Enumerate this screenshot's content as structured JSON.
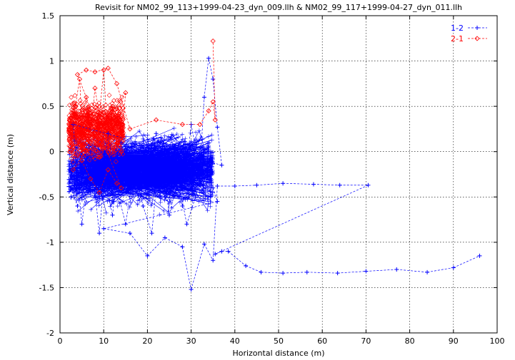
{
  "chart_data": {
    "type": "scatter",
    "title": "Revisit for NM02_99_113+1999-04-23_dyn_009.llh & NM02_99_117+1999-04-27_dyn_011.llh",
    "xlabel": "Horizontal distance (m)",
    "ylabel": "Vertical distance (m)",
    "xlim": [
      0,
      100
    ],
    "ylim": [
      -2,
      1.5
    ],
    "x_ticks": [
      "0",
      "10",
      "20",
      "30",
      "40",
      "50",
      "60",
      "70",
      "80",
      "90",
      "100"
    ],
    "y_ticks": [
      "1.5",
      "1",
      "0.5",
      "0",
      "-0.5",
      "-1",
      "-1.5",
      "-2"
    ],
    "grid": true,
    "legend_position": "top-right",
    "series": [
      {
        "name": "1-2",
        "color": "#0000ff",
        "marker": "plus",
        "line": "dashed",
        "points": [
          [
            2.5,
            -0.4
          ],
          [
            4.0,
            -0.6
          ],
          [
            6.0,
            -0.3
          ],
          [
            8.0,
            -0.5
          ],
          [
            10.0,
            -0.2
          ],
          [
            12.0,
            -0.7
          ],
          [
            14.0,
            0.1
          ],
          [
            16.0,
            -0.4
          ],
          [
            18.0,
            0.0
          ],
          [
            20.0,
            -0.3
          ],
          [
            22.0,
            0.2
          ],
          [
            24.0,
            -0.5
          ],
          [
            26.0,
            -0.1
          ],
          [
            28.0,
            -0.6
          ],
          [
            30.0,
            0.3
          ],
          [
            32.0,
            -0.2
          ],
          [
            33.0,
            0.6
          ],
          [
            34.0,
            1.03
          ],
          [
            35.0,
            0.8
          ],
          [
            36.0,
            0.27
          ],
          [
            37.0,
            -0.15
          ],
          [
            3.0,
            0.3
          ],
          [
            5.0,
            -0.8
          ],
          [
            7.0,
            0.0
          ],
          [
            9.0,
            -0.9
          ],
          [
            11.0,
            0.2
          ],
          [
            13.0,
            -0.4
          ],
          [
            15.0,
            -0.8
          ],
          [
            17.0,
            -0.2
          ],
          [
            19.0,
            -0.6
          ],
          [
            21.0,
            -0.9
          ],
          [
            23.0,
            0.1
          ],
          [
            25.0,
            -0.7
          ],
          [
            27.0,
            -0.3
          ],
          [
            29.0,
            -0.8
          ],
          [
            31.0,
            -0.5
          ],
          [
            33.0,
            -0.1
          ],
          [
            35.0,
            -0.4
          ],
          [
            36.0,
            -0.55
          ],
          [
            10.0,
            -0.85
          ],
          [
            16.0,
            -0.9
          ],
          [
            20.0,
            -1.15
          ],
          [
            24.0,
            -0.95
          ],
          [
            28.0,
            -1.05
          ],
          [
            30.0,
            -1.52
          ],
          [
            33.0,
            -1.02
          ],
          [
            35.0,
            -1.2
          ],
          [
            36.0,
            -0.38
          ],
          [
            40.0,
            -0.38
          ],
          [
            45.0,
            -0.37
          ],
          [
            51.0,
            -0.35
          ],
          [
            58.0,
            -0.36
          ],
          [
            64.0,
            -0.37
          ],
          [
            70.5,
            -0.37
          ],
          [
            35.5,
            -1.13
          ],
          [
            37.0,
            -1.1
          ],
          [
            38.5,
            -1.1
          ],
          [
            42.5,
            -1.26
          ],
          [
            46.0,
            -1.33
          ],
          [
            51.0,
            -1.34
          ],
          [
            56.5,
            -1.33
          ],
          [
            63.5,
            -1.34
          ],
          [
            70.0,
            -1.32
          ],
          [
            77.0,
            -1.3
          ],
          [
            84.0,
            -1.33
          ],
          [
            90.0,
            -1.28
          ],
          [
            96.0,
            -1.15
          ]
        ]
      },
      {
        "name": "2-1",
        "color": "#ff0000",
        "marker": "diamond",
        "line": "dashed",
        "points": [
          [
            2.5,
            0.1
          ],
          [
            3.5,
            0.5
          ],
          [
            4.5,
            0.8
          ],
          [
            5.0,
            0.3
          ],
          [
            6.0,
            0.6
          ],
          [
            7.0,
            0.2
          ],
          [
            8.0,
            0.7
          ],
          [
            9.0,
            0.4
          ],
          [
            10.0,
            0.9
          ],
          [
            11.0,
            0.1
          ],
          [
            12.0,
            0.5
          ],
          [
            13.0,
            0.3
          ],
          [
            14.0,
            0.0
          ],
          [
            15.0,
            0.65
          ],
          [
            3.0,
            -0.2
          ],
          [
            5.0,
            -0.1
          ],
          [
            7.0,
            -0.3
          ],
          [
            9.0,
            -0.45
          ],
          [
            11.0,
            -0.2
          ],
          [
            13.0,
            -0.35
          ],
          [
            14.0,
            -0.4
          ],
          [
            4.0,
            0.85
          ],
          [
            6.0,
            0.9
          ],
          [
            8.0,
            0.88
          ],
          [
            11.0,
            0.92
          ],
          [
            13.0,
            0.75
          ],
          [
            16.0,
            0.25
          ],
          [
            22.0,
            0.35
          ],
          [
            28.0,
            0.3
          ],
          [
            32.0,
            0.3
          ],
          [
            34.0,
            0.45
          ],
          [
            35.0,
            0.55
          ],
          [
            35.5,
            0.35
          ],
          [
            35.0,
            1.22
          ]
        ]
      }
    ]
  }
}
